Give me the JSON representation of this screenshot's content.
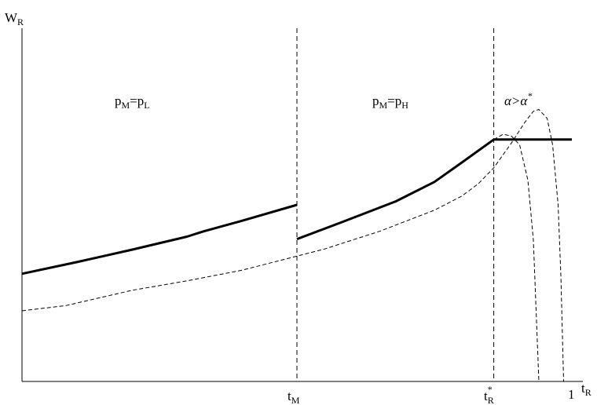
{
  "chart_data": {
    "type": "line",
    "ylabel": {
      "main": "W",
      "sub": "R"
    },
    "xlabel": {
      "main": "t",
      "sub": "R"
    },
    "xlim": [
      0,
      1
    ],
    "x_ticks": [
      {
        "main": "t",
        "sub": "M",
        "sup": "",
        "x": 0.5
      },
      {
        "main": "t",
        "sub": "R",
        "sup": "*",
        "x": 0.858
      },
      {
        "main": "1",
        "sub": "",
        "sup": "",
        "x": 1.0
      }
    ],
    "regions": [
      {
        "main": "p",
        "sub1": "M",
        "eq": "=p",
        "sub2": "L",
        "x": 0.25
      },
      {
        "main": "p",
        "sub1": "M",
        "eq": "=p",
        "sub2": "H",
        "x": 0.68
      }
    ],
    "annotation": {
      "text": "α>α",
      "sup": "*"
    },
    "vlines": [
      0.5,
      0.858
    ],
    "series": [
      {
        "style": "solid",
        "segments": [
          [
            [
              0.0,
              0.305
            ],
            [
              0.1,
              0.338
            ],
            [
              0.2,
              0.373
            ],
            [
              0.3,
              0.41
            ],
            [
              0.33,
              0.425
            ],
            [
              0.4,
              0.455
            ],
            [
              0.5,
              0.5
            ]
          ],
          [
            [
              0.5,
              0.403
            ],
            [
              0.58,
              0.45
            ],
            [
              0.68,
              0.51
            ],
            [
              0.75,
              0.565
            ],
            [
              0.8,
              0.62
            ],
            [
              0.858,
              0.685
            ],
            [
              0.9,
              0.685
            ],
            [
              1.0,
              0.685
            ]
          ]
        ]
      },
      {
        "style": "dashed",
        "segments": [
          [
            [
              0.0,
              0.2
            ],
            [
              0.08,
              0.215
            ],
            [
              0.15,
              0.24
            ],
            [
              0.2,
              0.258
            ],
            [
              0.3,
              0.285
            ],
            [
              0.4,
              0.315
            ],
            [
              0.5,
              0.355
            ],
            [
              0.55,
              0.375
            ],
            [
              0.6,
              0.4
            ],
            [
              0.65,
              0.425
            ],
            [
              0.7,
              0.455
            ],
            [
              0.75,
              0.485
            ],
            [
              0.8,
              0.525
            ],
            [
              0.83,
              0.56
            ],
            [
              0.858,
              0.605
            ],
            [
              0.89,
              0.675
            ],
            [
              0.915,
              0.735
            ],
            [
              0.93,
              0.765
            ],
            [
              0.94,
              0.77
            ],
            [
              0.955,
              0.745
            ],
            [
              0.965,
              0.67
            ],
            [
              0.975,
              0.5
            ],
            [
              0.98,
              0.3
            ],
            [
              0.985,
              0.0
            ]
          ]
        ]
      },
      {
        "style": "dashed",
        "segments": [
          [
            [
              0.858,
              0.685
            ],
            [
              0.875,
              0.7
            ],
            [
              0.89,
              0.695
            ],
            [
              0.905,
              0.67
            ],
            [
              0.92,
              0.57
            ],
            [
              0.93,
              0.4
            ],
            [
              0.935,
              0.2
            ],
            [
              0.94,
              0.0
            ]
          ]
        ]
      }
    ]
  }
}
